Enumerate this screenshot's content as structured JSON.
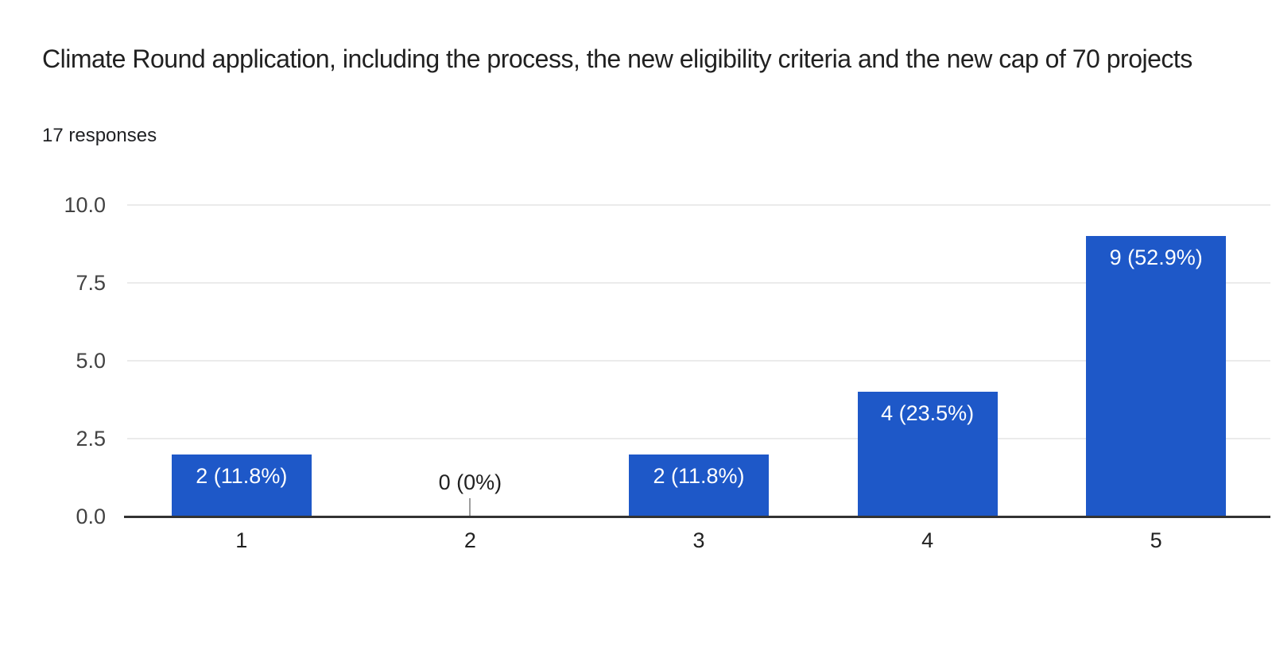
{
  "header": {
    "title": "Climate Round application, including the process, the new eligibility criteria and the new cap of 70 projects",
    "responses_label": "17 responses"
  },
  "colors": {
    "bar": "#1e58c8",
    "bar_label_text": "#ffffff",
    "gridline": "#ebebeb",
    "baseline": "#333333",
    "y_axis_text": "#424242",
    "x_axis_text": "#212121",
    "zero_label_text": "#212121",
    "zero_stem": "#9e9e9e",
    "title_text": "#212121"
  },
  "chart_data": {
    "type": "bar",
    "title": "Climate Round application, including the process, the new eligibility criteria and the new cap of 70 projects",
    "subtitle": "17 responses",
    "categories": [
      "1",
      "2",
      "3",
      "4",
      "5"
    ],
    "values": [
      2,
      0,
      2,
      4,
      9
    ],
    "bar_labels": [
      "2 (11.8%)",
      "0 (0%)",
      "2 (11.8%)",
      "4 (23.5%)",
      "9 (52.9%)"
    ],
    "xlabel": "",
    "ylabel": "",
    "y_ticks": [
      "0.0",
      "2.5",
      "5.0",
      "7.5",
      "10.0"
    ],
    "ylim": [
      0,
      10
    ],
    "grid": true,
    "legend": "none"
  }
}
